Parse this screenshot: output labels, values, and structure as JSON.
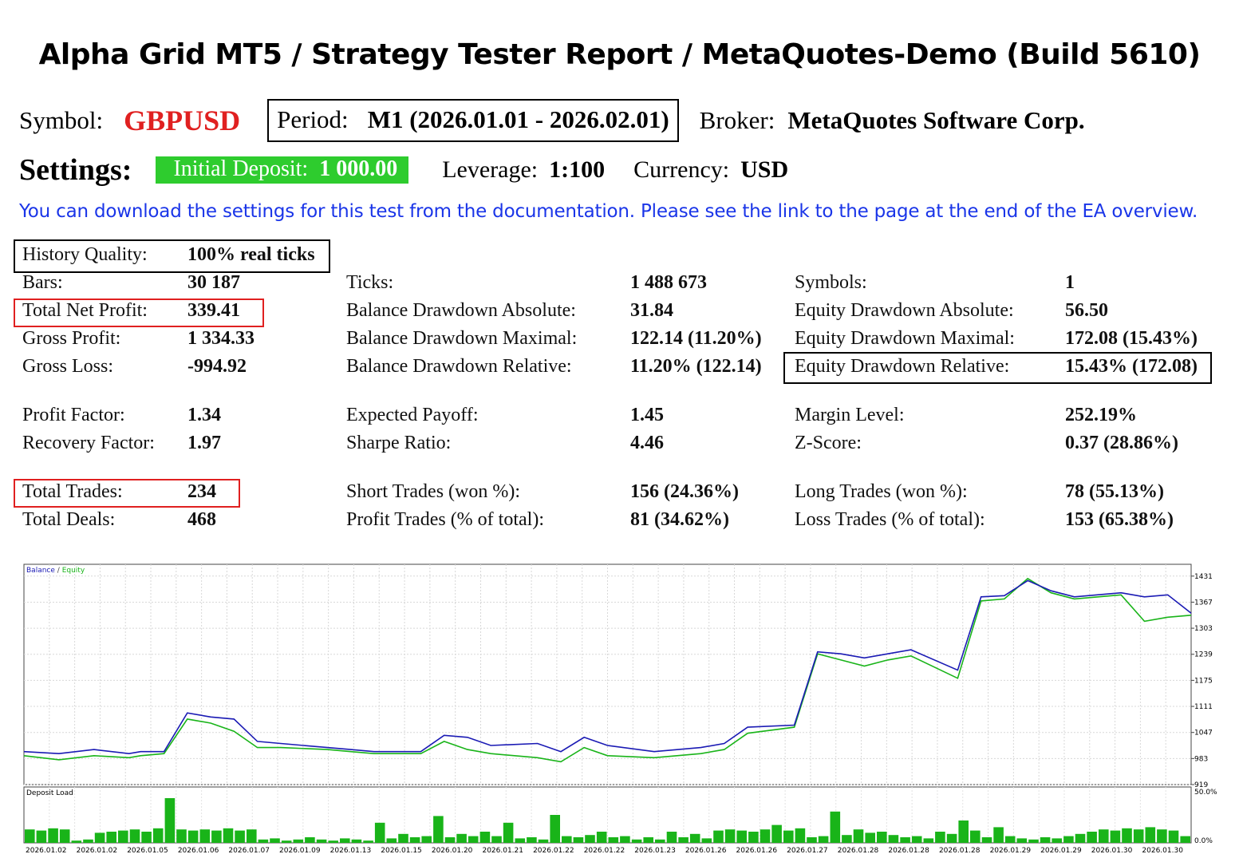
{
  "title": "Alpha Grid MT5  /  Strategy Tester Report  /  MetaQuotes-Demo (Build 5610)",
  "symbol": {
    "label": "Symbol:",
    "value": "GBPUSD"
  },
  "period": {
    "label": "Period:",
    "value": "M1 (2026.01.01 - 2026.02.01)"
  },
  "broker": {
    "label": "Broker:",
    "value": "MetaQuotes Software Corp."
  },
  "settings": {
    "label": "Settings:",
    "initial_deposit_label": "Initial Deposit:",
    "initial_deposit_value": "1 000.00",
    "leverage_label": "Leverage:",
    "leverage_value": "1:100",
    "currency_label": "Currency:",
    "currency_value": "USD"
  },
  "note": "You can download the settings for this test from the documentation. Please see the link to the page at the end of the EA overview.",
  "stats": {
    "history_quality": {
      "label": "History Quality:",
      "value": "100% real ticks"
    },
    "bars": {
      "label": "Bars:",
      "value": "30 187"
    },
    "total_net_profit": {
      "label": "Total Net Profit:",
      "value": "339.41"
    },
    "gross_profit": {
      "label": "Gross Profit:",
      "value": "1 334.33"
    },
    "gross_loss": {
      "label": "Gross Loss:",
      "value": "-994.92"
    },
    "profit_factor": {
      "label": "Profit Factor:",
      "value": "1.34"
    },
    "recovery_factor": {
      "label": "Recovery Factor:",
      "value": "1.97"
    },
    "total_trades": {
      "label": "Total Trades:",
      "value": "234"
    },
    "total_deals": {
      "label": "Total Deals:",
      "value": "468"
    },
    "ticks": {
      "label": "Ticks:",
      "value": "1 488 673"
    },
    "balance_dd_abs": {
      "label": "Balance Drawdown Absolute:",
      "value": "31.84"
    },
    "balance_dd_max": {
      "label": "Balance Drawdown Maximal:",
      "value": "122.14 (11.20%)"
    },
    "balance_dd_rel": {
      "label": "Balance Drawdown Relative:",
      "value": "11.20% (122.14)"
    },
    "expected_payoff": {
      "label": "Expected Payoff:",
      "value": "1.45"
    },
    "sharpe_ratio": {
      "label": "Sharpe Ratio:",
      "value": "4.46"
    },
    "short_trades": {
      "label": "Short Trades (won %):",
      "value": "156 (24.36%)"
    },
    "profit_trades": {
      "label": "Profit Trades (% of total):",
      "value": "81 (34.62%)"
    },
    "symbols": {
      "label": "Symbols:",
      "value": "1"
    },
    "equity_dd_abs": {
      "label": "Equity Drawdown Absolute:",
      "value": "56.50"
    },
    "equity_dd_max": {
      "label": "Equity Drawdown Maximal:",
      "value": "172.08 (15.43%)"
    },
    "equity_dd_rel": {
      "label": "Equity Drawdown Relative:",
      "value": "15.43% (172.08)"
    },
    "margin_level": {
      "label": "Margin Level:",
      "value": "252.19%"
    },
    "z_score": {
      "label": "Z-Score:",
      "value": "0.37 (28.86%)"
    },
    "long_trades": {
      "label": "Long Trades (won %):",
      "value": "78 (55.13%)"
    },
    "loss_trades": {
      "label": "Loss Trades (% of total):",
      "value": "153 (65.38%)"
    }
  },
  "colors": {
    "balance": "#1a1ab4",
    "equity": "#19b419",
    "deposit_load": "#19b419",
    "highlight_red": "#e02020"
  },
  "chart_data": {
    "type": "line",
    "legend": [
      "Balance",
      "Equity"
    ],
    "series": [
      {
        "name": "Balance",
        "x": [
          0,
          3,
          6,
          9,
          10,
          12,
          14,
          16,
          18,
          20,
          22,
          26,
          28,
          30,
          34,
          36,
          38,
          40,
          44,
          46,
          48,
          50,
          54,
          58,
          60,
          62,
          66,
          68,
          70,
          72,
          74,
          76,
          80,
          82,
          84,
          86,
          88,
          90,
          94,
          96,
          98,
          100
        ],
        "values": [
          1000,
          995,
          1005,
          995,
          1000,
          1000,
          1095,
          1085,
          1080,
          1025,
          1020,
          1010,
          1005,
          1000,
          1000,
          1040,
          1035,
          1015,
          1020,
          1000,
          1035,
          1015,
          1000,
          1010,
          1020,
          1060,
          1065,
          1245,
          1240,
          1230,
          1240,
          1250,
          1200,
          1380,
          1383,
          1420,
          1395,
          1380,
          1390,
          1380,
          1385,
          1340
        ]
      },
      {
        "name": "Equity",
        "x": [
          0,
          3,
          6,
          9,
          10,
          12,
          14,
          16,
          18,
          20,
          22,
          26,
          28,
          30,
          34,
          36,
          38,
          40,
          44,
          46,
          48,
          50,
          54,
          58,
          60,
          62,
          66,
          68,
          70,
          72,
          74,
          76,
          80,
          82,
          84,
          86,
          88,
          90,
          94,
          96,
          98,
          100
        ],
        "values": [
          990,
          980,
          990,
          985,
          990,
          995,
          1080,
          1070,
          1050,
          1010,
          1010,
          1005,
          1000,
          995,
          995,
          1025,
          1005,
          995,
          985,
          975,
          1010,
          990,
          985,
          995,
          1005,
          1045,
          1060,
          1240,
          1225,
          1210,
          1225,
          1235,
          1180,
          1370,
          1375,
          1425,
          1390,
          1375,
          1385,
          1320,
          1330,
          1335
        ]
      }
    ],
    "ylim": [
      919,
      1460
    ],
    "y_ticks": [
      1431,
      1367,
      1303,
      1239,
      1175,
      1111,
      1047,
      983,
      919
    ],
    "deposit_load": {
      "label": "Deposit Load",
      "y_ticks": [
        "50.0%",
        "0.0%"
      ],
      "values": [
        0.12,
        0.11,
        0.13,
        0.12,
        0.02,
        0.03,
        0.09,
        0.1,
        0.11,
        0.12,
        0.1,
        0.13,
        0.4,
        0.12,
        0.11,
        0.12,
        0.11,
        0.13,
        0.11,
        0.12,
        0.03,
        0.04,
        0.02,
        0.03,
        0.05,
        0.03,
        0.02,
        0.04,
        0.03,
        0.02,
        0.18,
        0.04,
        0.08,
        0.05,
        0.06,
        0.24,
        0.05,
        0.08,
        0.06,
        0.1,
        0.06,
        0.18,
        0.04,
        0.05,
        0.03,
        0.25,
        0.06,
        0.05,
        0.07,
        0.1,
        0.05,
        0.06,
        0.03,
        0.05,
        0.03,
        0.1,
        0.05,
        0.08,
        0.04,
        0.11,
        0.12,
        0.11,
        0.1,
        0.12,
        0.16,
        0.11,
        0.13,
        0.05,
        0.06,
        0.28,
        0.07,
        0.12,
        0.09,
        0.1,
        0.07,
        0.05,
        0.06,
        0.04,
        0.1,
        0.08,
        0.2,
        0.11,
        0.05,
        0.14,
        0.06,
        0.04,
        0.03,
        0.05,
        0.04,
        0.06,
        0.08,
        0.1,
        0.12,
        0.11,
        0.13,
        0.12,
        0.14,
        0.12,
        0.11,
        0.06
      ],
      "x_labels": [
        "2026.01.02",
        "2026.01.02",
        "2026.01.05",
        "2026.01.06",
        "2026.01.07",
        "2026.01.09",
        "2026.01.13",
        "2026.01.15",
        "2026.01.20",
        "2026.01.21",
        "2026.01.22",
        "2026.01.22",
        "2026.01.23",
        "2026.01.26",
        "2026.01.26",
        "2026.01.27",
        "2026.01.28",
        "2026.01.28",
        "2026.01.28",
        "2026.01.29",
        "2026.01.29",
        "2026.01.30",
        "2026.01.30"
      ]
    }
  }
}
